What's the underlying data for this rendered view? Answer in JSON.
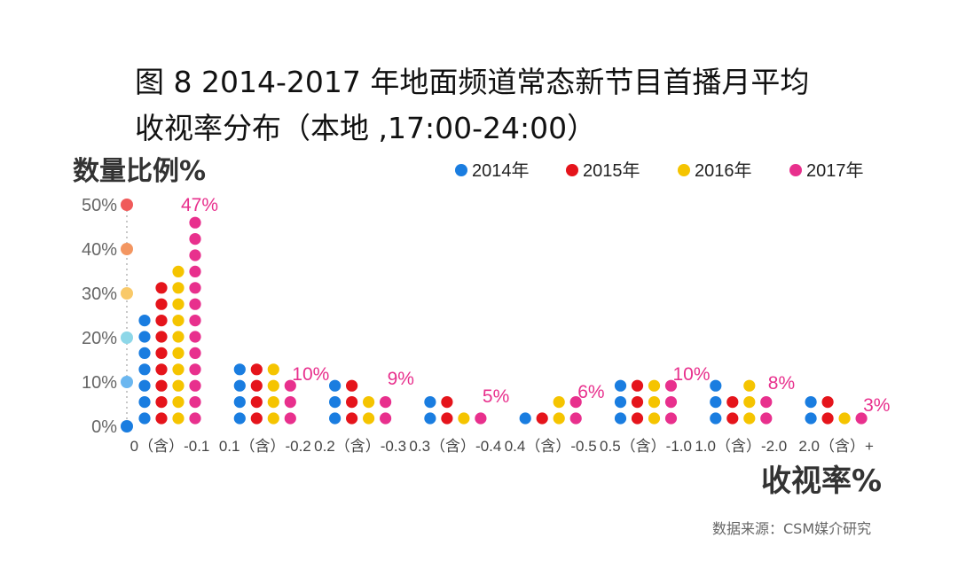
{
  "title_line1": "图 8  2014-2017 年地面频道常态新节目首播月平均",
  "title_line2": "收视率分布（本地 ,17:00-24:00）",
  "source": "数据来源：CSM媒介研究",
  "colors": {
    "2014年": "#1a7de0",
    "2015年": "#e5141b",
    "2016年": "#f5c400",
    "2017年": "#e8308d"
  },
  "chart_data": {
    "type": "bar",
    "style": "dot-column",
    "ylabel": "数量比例%",
    "xlabel": "收视率%",
    "ylim": [
      0,
      50
    ],
    "yticks": [
      "0%",
      "10%",
      "20%",
      "30%",
      "40%",
      "50%"
    ],
    "categories": [
      "0（含）-0.1",
      "0.1（含）-0.2",
      "0.2（含）-0.3",
      "0.3（含）-0.4",
      "0.4（含）-0.5",
      "0.5（含）-1.0",
      "1.0（含）-2.0",
      "2.0（含）+"
    ],
    "series": [
      {
        "name": "2014年",
        "values": [
          24,
          15,
          10,
          6,
          5,
          10,
          10,
          6
        ]
      },
      {
        "name": "2015年",
        "values": [
          33,
          14,
          10,
          6,
          5,
          11,
          9,
          6
        ]
      },
      {
        "name": "2016年",
        "values": [
          38,
          15,
          9,
          5,
          6,
          11,
          10,
          3
        ]
      },
      {
        "name": "2017年",
        "values": [
          47,
          10,
          9,
          5,
          6,
          10,
          8,
          3
        ]
      }
    ],
    "data_labels": [
      "47%",
      "10%",
      "9%",
      "5%",
      "6%",
      "10%",
      "8%",
      "3%"
    ]
  }
}
